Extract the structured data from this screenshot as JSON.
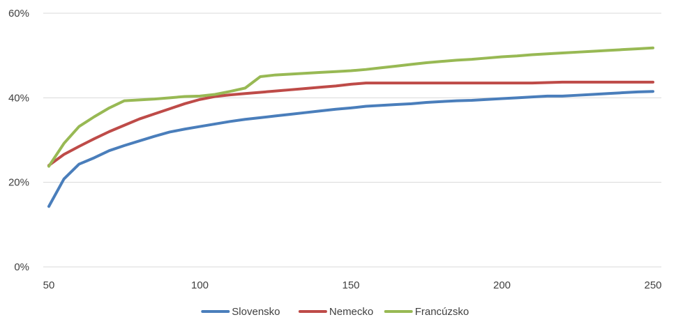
{
  "chart_data": {
    "type": "line",
    "title": "",
    "xlabel": "",
    "ylabel": "",
    "xlim": [
      50,
      250
    ],
    "ylim": [
      0,
      0.6
    ],
    "x_ticks": [
      50,
      100,
      150,
      200,
      250
    ],
    "x_tick_labels": [
      "50",
      "100",
      "150",
      "200",
      "250"
    ],
    "y_ticks": [
      0,
      0.2,
      0.4,
      0.6
    ],
    "y_tick_labels": [
      "0%",
      "20%",
      "40%",
      "60%"
    ],
    "grid": "horizontal",
    "legend_position": "bottom",
    "x": [
      50,
      55,
      60,
      65,
      70,
      75,
      80,
      85,
      90,
      95,
      100,
      105,
      110,
      115,
      120,
      125,
      130,
      135,
      140,
      145,
      150,
      155,
      160,
      165,
      170,
      175,
      180,
      185,
      190,
      195,
      200,
      205,
      210,
      215,
      220,
      225,
      230,
      235,
      240,
      245,
      250
    ],
    "series": [
      {
        "name": "Slovensko",
        "color": "#4a7ebb",
        "values": [
          0.143,
          0.208,
          0.243,
          0.258,
          0.275,
          0.287,
          0.298,
          0.309,
          0.319,
          0.326,
          0.332,
          0.338,
          0.344,
          0.349,
          0.353,
          0.357,
          0.361,
          0.365,
          0.369,
          0.373,
          0.376,
          0.38,
          0.382,
          0.384,
          0.386,
          0.389,
          0.391,
          0.393,
          0.394,
          0.396,
          0.398,
          0.4,
          0.402,
          0.404,
          0.404,
          0.406,
          0.408,
          0.41,
          0.412,
          0.414,
          0.415
        ]
      },
      {
        "name": "Nemecko",
        "color": "#be4b48",
        "values": [
          0.24,
          0.266,
          0.285,
          0.303,
          0.32,
          0.335,
          0.35,
          0.362,
          0.374,
          0.386,
          0.396,
          0.403,
          0.407,
          0.41,
          0.413,
          0.416,
          0.419,
          0.422,
          0.425,
          0.428,
          0.432,
          0.435,
          0.435,
          0.435,
          0.435,
          0.435,
          0.435,
          0.435,
          0.435,
          0.435,
          0.435,
          0.435,
          0.435,
          0.436,
          0.437,
          0.437,
          0.437,
          0.437,
          0.437,
          0.437,
          0.437
        ]
      },
      {
        "name": "Francúzsko",
        "color": "#98b954",
        "values": [
          0.238,
          0.292,
          0.332,
          0.355,
          0.376,
          0.393,
          0.395,
          0.397,
          0.4,
          0.403,
          0.404,
          0.408,
          0.415,
          0.423,
          0.45,
          0.454,
          0.456,
          0.458,
          0.46,
          0.462,
          0.464,
          0.467,
          0.471,
          0.475,
          0.479,
          0.483,
          0.486,
          0.489,
          0.491,
          0.494,
          0.497,
          0.499,
          0.502,
          0.504,
          0.506,
          0.508,
          0.51,
          0.512,
          0.514,
          0.516,
          0.518
        ]
      }
    ]
  }
}
